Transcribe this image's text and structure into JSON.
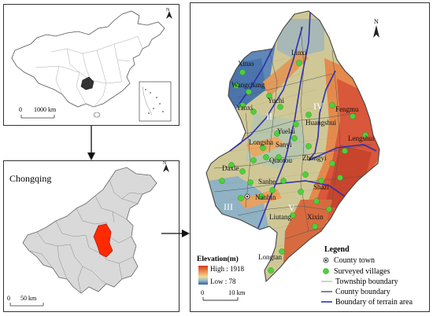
{
  "china_panel": {
    "scale_zero": "0",
    "scale_label": "1000 km",
    "north": "N"
  },
  "cq_panel": {
    "title": "Chongqing",
    "scale_zero": "0",
    "scale_label": "50 km",
    "north": "N"
  },
  "main_panel": {
    "north": "N",
    "towns": [
      "Linxi",
      "Xituo",
      "Wangchang",
      "Yanxi",
      "Yuchi",
      "Yuelai",
      "Huangshui",
      "Fengmu",
      "Longsha",
      "Sanyi",
      "Lengshui",
      "Daxie",
      "Qiaotou",
      "Zhongyi",
      "Sanhe",
      "Nanbin",
      "Shazi",
      "Liutang",
      "Xixin",
      "Longtan"
    ],
    "terrain_areas": [
      "I",
      "II",
      "III",
      "IV",
      "V"
    ],
    "elevation": {
      "title": "Elevation(m)",
      "high_label": "High : 1918",
      "low_label": "Low : 78"
    },
    "scale_zero": "0",
    "scale_label": "10 km",
    "legend": {
      "title": "Legend",
      "items": [
        "County town",
        "Surveyed villages",
        "Township boundary",
        "County boundary",
        "Boundary of terrain area"
      ]
    },
    "colors": {
      "village": "#4cd13a",
      "terrain_boundary": "#2f2fb0",
      "highlight": "#ff2a00"
    }
  }
}
